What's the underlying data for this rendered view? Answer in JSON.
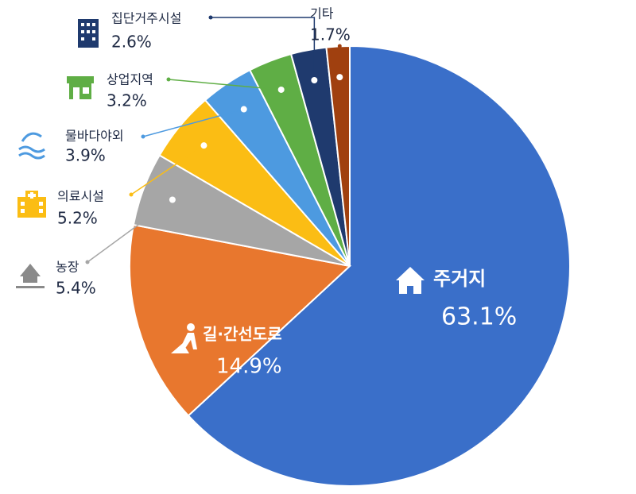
{
  "chart_data": {
    "type": "pie",
    "categories": [
      "주거지",
      "길·간선도로",
      "농장",
      "의료시설",
      "물바다야외",
      "상업지역",
      "집단거주시설",
      "기타"
    ],
    "values": [
      63.1,
      14.9,
      5.4,
      5.2,
      3.9,
      3.2,
      2.6,
      1.7
    ],
    "value_labels": [
      "63.1%",
      "14.9%",
      "5.4%",
      "5.2%",
      "3.9%",
      "3.2%",
      "2.6%",
      "1.7%"
    ],
    "colors": [
      "#3a6fc9",
      "#e8772e",
      "#a6a6a6",
      "#fbbd14",
      "#4d9ae0",
      "#5fae45",
      "#1f3a6e",
      "#a0400f"
    ]
  }
}
